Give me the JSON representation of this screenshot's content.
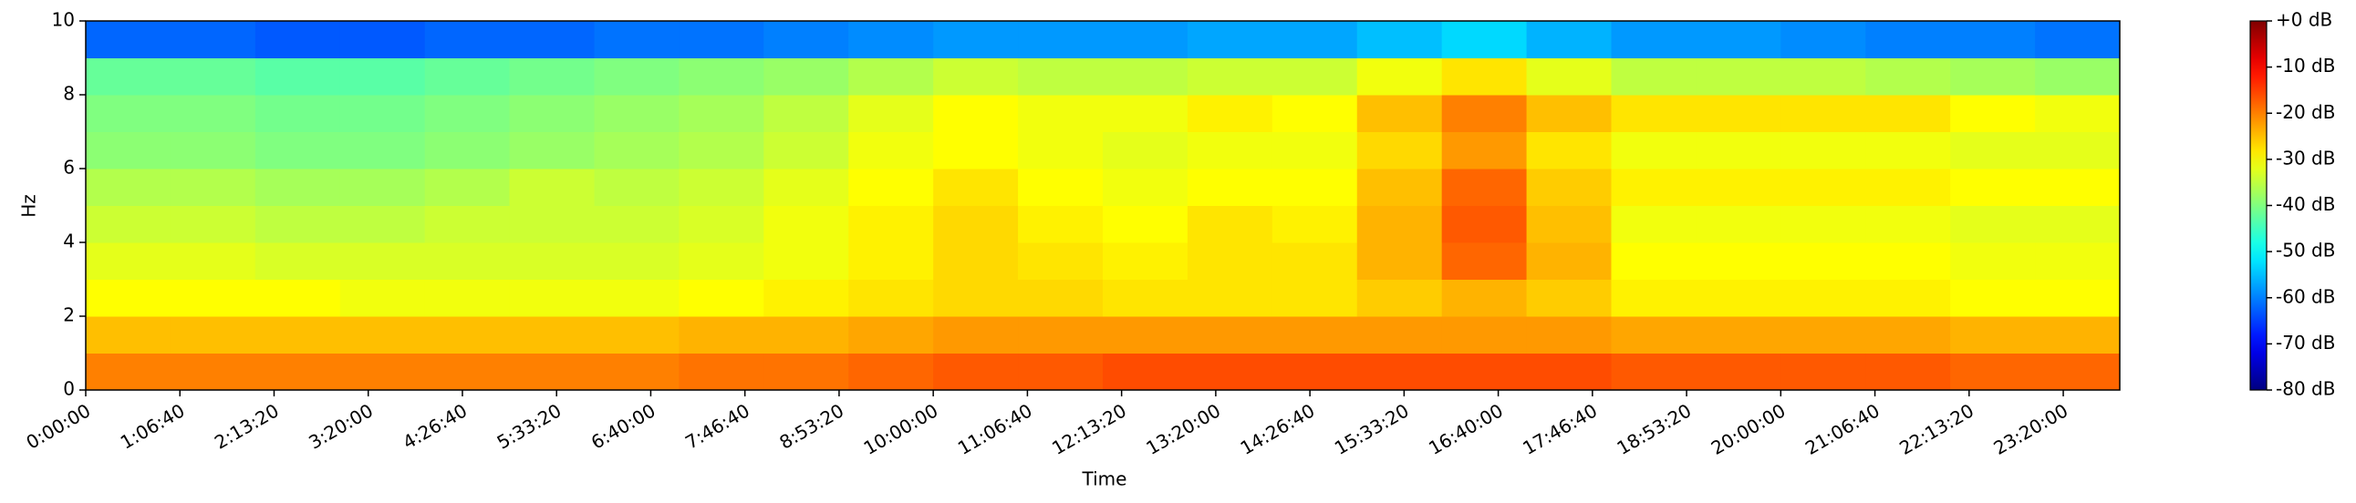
{
  "chart_data": {
    "type": "heatmap",
    "title": null,
    "xlabel": "Time",
    "ylabel": "Hz",
    "colormap": "jet",
    "x": [
      1800,
      5400,
      9000,
      12600,
      16200,
      19800,
      23400,
      27000,
      30600,
      34200,
      37800,
      41400,
      45000,
      48600,
      52200,
      55800,
      59400,
      63000,
      66600,
      70200,
      73800,
      77400,
      81000,
      84600
    ],
    "y": [
      0.5,
      1.5,
      2.5,
      3.5,
      4.5,
      5.5,
      6.5,
      7.5,
      8.5,
      9.5
    ],
    "values": [
      [
        -20,
        -20,
        -20,
        -20,
        -20,
        -20,
        -20,
        -19,
        -19,
        -18,
        -17,
        -17,
        -16,
        -16,
        -16,
        -16,
        -16,
        -16,
        -17,
        -17,
        -17,
        -17,
        -18,
        -18
      ],
      [
        -25,
        -25,
        -25,
        -25,
        -25,
        -25,
        -25,
        -24,
        -24,
        -23,
        -22,
        -22,
        -22,
        -22,
        -22,
        -22,
        -22,
        -22,
        -23,
        -23,
        -23,
        -23,
        -24,
        -24
      ],
      [
        -30,
        -30,
        -30,
        -31,
        -31,
        -31,
        -31,
        -30,
        -29,
        -28,
        -27,
        -27,
        -28,
        -28,
        -28,
        -26,
        -24,
        -26,
        -29,
        -29,
        -29,
        -29,
        -30,
        -30
      ],
      [
        -32,
        -32,
        -33,
        -33,
        -33,
        -33,
        -33,
        -32,
        -31,
        -29,
        -27,
        -28,
        -29,
        -28,
        -28,
        -24,
        -18,
        -24,
        -30,
        -30,
        -30,
        -30,
        -31,
        -31
      ],
      [
        -34,
        -34,
        -35,
        -35,
        -34,
        -34,
        -34,
        -33,
        -31,
        -29,
        -27,
        -29,
        -30,
        -28,
        -29,
        -24,
        -17,
        -25,
        -31,
        -31,
        -31,
        -31,
        -32,
        -32
      ],
      [
        -36,
        -36,
        -37,
        -37,
        -36,
        -34,
        -35,
        -34,
        -32,
        -30,
        -28,
        -30,
        -31,
        -30,
        -30,
        -25,
        -18,
        -26,
        -29,
        -29,
        -29,
        -29,
        -30,
        -30
      ],
      [
        -39,
        -39,
        -40,
        -40,
        -39,
        -38,
        -37,
        -36,
        -34,
        -31,
        -30,
        -31,
        -32,
        -31,
        -31,
        -27,
        -22,
        -28,
        -31,
        -31,
        -31,
        -31,
        -32,
        -32
      ],
      [
        -40,
        -40,
        -41,
        -41,
        -40,
        -39,
        -38,
        -37,
        -35,
        -32,
        -30,
        -31,
        -31,
        -29,
        -30,
        -25,
        -20,
        -25,
        -28,
        -28,
        -28,
        -28,
        -30,
        -31
      ],
      [
        -42,
        -42,
        -43,
        -43,
        -42,
        -41,
        -40,
        -39,
        -38,
        -36,
        -34,
        -35,
        -35,
        -34,
        -34,
        -31,
        -28,
        -32,
        -35,
        -35,
        -35,
        -36,
        -37,
        -38
      ],
      [
        -62,
        -62,
        -63,
        -63,
        -62,
        -62,
        -61,
        -61,
        -60,
        -59,
        -58,
        -58,
        -58,
        -57,
        -57,
        -55,
        -53,
        -56,
        -58,
        -58,
        -59,
        -60,
        -60,
        -61
      ]
    ],
    "xlim": [
      0,
      86400
    ],
    "xticks": [
      {
        "value": 0,
        "label": "0:00:00"
      },
      {
        "value": 4000,
        "label": "1:06:40"
      },
      {
        "value": 8000,
        "label": "2:13:20"
      },
      {
        "value": 12000,
        "label": "3:20:00"
      },
      {
        "value": 16000,
        "label": "4:26:40"
      },
      {
        "value": 20000,
        "label": "5:33:20"
      },
      {
        "value": 24000,
        "label": "6:40:00"
      },
      {
        "value": 28000,
        "label": "7:46:40"
      },
      {
        "value": 32000,
        "label": "8:53:20"
      },
      {
        "value": 36000,
        "label": "10:00:00"
      },
      {
        "value": 40000,
        "label": "11:06:40"
      },
      {
        "value": 44000,
        "label": "12:13:20"
      },
      {
        "value": 48000,
        "label": "13:20:00"
      },
      {
        "value": 52000,
        "label": "14:26:40"
      },
      {
        "value": 56000,
        "label": "15:33:20"
      },
      {
        "value": 60000,
        "label": "16:40:00"
      },
      {
        "value": 64000,
        "label": "17:46:40"
      },
      {
        "value": 68000,
        "label": "18:53:20"
      },
      {
        "value": 72000,
        "label": "20:00:00"
      },
      {
        "value": 76000,
        "label": "21:06:40"
      },
      {
        "value": 80000,
        "label": "22:13:20"
      },
      {
        "value": 84000,
        "label": "23:20:00"
      }
    ],
    "ylim": [
      0,
      10
    ],
    "yticks": [
      0,
      2,
      4,
      6,
      8,
      10
    ],
    "clim": [
      -80,
      0
    ],
    "cticks": [
      {
        "value": 0,
        "label": "+0 dB"
      },
      {
        "value": -10,
        "label": "-10 dB"
      },
      {
        "value": -20,
        "label": "-20 dB"
      },
      {
        "value": -30,
        "label": "-30 dB"
      },
      {
        "value": -40,
        "label": "-40 dB"
      },
      {
        "value": -50,
        "label": "-50 dB"
      },
      {
        "value": -60,
        "label": "-60 dB"
      },
      {
        "value": -70,
        "label": "-70 dB"
      },
      {
        "value": -80,
        "label": "-80 dB"
      }
    ]
  }
}
